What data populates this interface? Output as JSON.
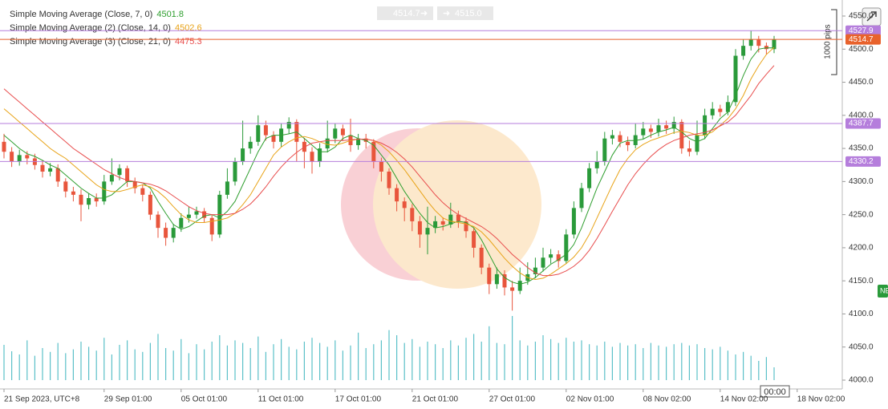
{
  "chart_data": {
    "type": "candlestick",
    "categories": [
      "21 Sep 2023, UTC+8",
      null,
      null,
      null,
      null,
      null,
      null,
      null,
      null,
      null,
      null,
      null,
      null,
      "29 Sep 01:00",
      null,
      null,
      null,
      null,
      null,
      null,
      null,
      null,
      null,
      "05 Oct 01:00",
      null,
      null,
      null,
      null,
      null,
      null,
      null,
      null,
      null,
      "11 Oct 01:00",
      null,
      null,
      null,
      null,
      null,
      null,
      null,
      null,
      null,
      "17 Oct 01:00",
      null,
      null,
      null,
      null,
      null,
      null,
      null,
      null,
      null,
      "21 Oct 01:00",
      null,
      null,
      null,
      null,
      null,
      null,
      null,
      null,
      null,
      "27 Oct 01:00",
      null,
      null,
      null,
      null,
      null,
      null,
      null,
      null,
      null,
      "02 Nov 01:00",
      null,
      null,
      null,
      null,
      null,
      null,
      null,
      null,
      null,
      "08 Nov 02:00",
      null,
      null,
      null,
      null,
      null,
      null,
      null,
      null,
      null,
      "14 Nov 02:00",
      null,
      null,
      null,
      null,
      null,
      null,
      null,
      null,
      null,
      "18 Nov 02:00"
    ],
    "open": [
      4360,
      4345,
      4330,
      4340,
      4335,
      4325,
      4315,
      4320,
      4300,
      4285,
      4280,
      4265,
      4275,
      4270,
      4300,
      4310,
      4320,
      4300,
      4290,
      4280,
      4250,
      4230,
      4215,
      4230,
      4245,
      4250,
      4255,
      4245,
      4220,
      4280,
      4300,
      4330,
      4350,
      4360,
      4385,
      4370,
      4360,
      4380,
      4390,
      4360,
      4345,
      4330,
      4350,
      4365,
      4380,
      4370,
      4355,
      4365,
      4360,
      4330,
      4315,
      4290,
      4270,
      4260,
      4240,
      4220,
      4230,
      4240,
      4235,
      4250,
      4240,
      4225,
      4200,
      4170,
      4145,
      4160,
      4140,
      4135,
      4150,
      4160,
      4170,
      4185,
      4190,
      4180,
      4220,
      4260,
      4290,
      4320,
      4330,
      4365,
      4370,
      4360,
      4355,
      4370,
      4380,
      4375,
      4385,
      4380,
      4390,
      4350,
      4345,
      4370,
      4400,
      4410,
      4405,
      4420,
      4490,
      4505,
      4515,
      4505,
      4500,
      null,
      null,
      null
    ],
    "high": [
      4372,
      4352,
      4348,
      4346,
      4342,
      4332,
      4328,
      4326,
      4305,
      4292,
      4288,
      4282,
      4282,
      4310,
      4335,
      4326,
      4324,
      4306,
      4296,
      4285,
      4255,
      4238,
      4236,
      4252,
      4262,
      4262,
      4260,
      4250,
      4286,
      4320,
      4336,
      4392,
      4368,
      4400,
      4392,
      4376,
      4388,
      4397,
      4394,
      4366,
      4352,
      4358,
      4392,
      4388,
      4386,
      4395,
      4372,
      4372,
      4364,
      4336,
      4320,
      4296,
      4276,
      4266,
      4248,
      4262,
      4248,
      4246,
      4268,
      4256,
      4246,
      4230,
      4205,
      4176,
      4170,
      4166,
      4150,
      4170,
      4178,
      4185,
      4200,
      4198,
      4196,
      4228,
      4270,
      4298,
      4328,
      4346,
      4375,
      4378,
      4376,
      4368,
      4388,
      4390,
      4386,
      4395,
      4392,
      4398,
      4394,
      4362,
      4392,
      4410,
      4420,
      4416,
      4430,
      4500,
      4515,
      4528,
      4520,
      4510,
      4520,
      null,
      null,
      null
    ],
    "low": [
      4335,
      4322,
      4324,
      4326,
      4318,
      4306,
      4308,
      4292,
      4276,
      4270,
      4240,
      4258,
      4262,
      4265,
      4295,
      4302,
      4292,
      4282,
      4270,
      4242,
      4215,
      4203,
      4208,
      4224,
      4238,
      4244,
      4238,
      4210,
      4215,
      4274,
      4294,
      4325,
      4342,
      4354,
      4362,
      4350,
      4352,
      4372,
      4330,
      4320,
      4312,
      4322,
      4344,
      4358,
      4362,
      4345,
      4348,
      4350,
      4320,
      4300,
      4280,
      4255,
      4240,
      4225,
      4200,
      4190,
      4222,
      4226,
      4230,
      4230,
      4215,
      4185,
      4160,
      4130,
      4138,
      4128,
      4105,
      4130,
      4144,
      4154,
      4164,
      4176,
      4170,
      4176,
      4214,
      4254,
      4284,
      4312,
      4324,
      4356,
      4352,
      4346,
      4350,
      4364,
      4366,
      4368,
      4372,
      4372,
      4342,
      4338,
      4340,
      4364,
      4394,
      4398,
      4400,
      4414,
      4484,
      4498,
      4495,
      4492,
      4494,
      null,
      null,
      null
    ],
    "close": [
      4345,
      4330,
      4340,
      4335,
      4325,
      4315,
      4320,
      4300,
      4285,
      4280,
      4265,
      4275,
      4270,
      4300,
      4310,
      4320,
      4300,
      4290,
      4280,
      4250,
      4230,
      4215,
      4230,
      4245,
      4250,
      4255,
      4245,
      4220,
      4280,
      4300,
      4330,
      4350,
      4360,
      4385,
      4370,
      4360,
      4380,
      4390,
      4360,
      4345,
      4330,
      4350,
      4365,
      4380,
      4370,
      4355,
      4365,
      4360,
      4330,
      4315,
      4290,
      4270,
      4260,
      4240,
      4220,
      4230,
      4240,
      4235,
      4250,
      4240,
      4225,
      4200,
      4170,
      4145,
      4160,
      4140,
      4135,
      4150,
      4160,
      4170,
      4185,
      4190,
      4180,
      4220,
      4260,
      4290,
      4320,
      4330,
      4365,
      4370,
      4360,
      4355,
      4370,
      4380,
      4375,
      4385,
      4380,
      4390,
      4350,
      4345,
      4370,
      4400,
      4410,
      4405,
      4420,
      4490,
      4505,
      4515,
      4505,
      4500,
      4514.7,
      null,
      null,
      null
    ],
    "up_color": "#2a9a3a",
    "down_color": "#e8553c",
    "volume": {
      "color": "#5bc0c8",
      "vlim": [
        0,
        100
      ],
      "values": [
        55,
        45,
        40,
        62,
        38,
        50,
        44,
        58,
        42,
        48,
        60,
        52,
        46,
        66,
        40,
        55,
        62,
        48,
        44,
        58,
        72,
        50,
        46,
        64,
        42,
        56,
        48,
        60,
        70,
        54,
        62,
        58,
        50,
        68,
        44,
        56,
        64,
        52,
        48,
        60,
        66,
        58,
        52,
        62,
        46,
        54,
        74,
        50,
        56,
        62,
        78,
        70,
        58,
        64,
        52,
        60,
        56,
        50,
        62,
        54,
        66,
        72,
        60,
        84,
        58,
        56,
        100,
        62,
        54,
        60,
        70,
        64,
        58,
        66,
        60,
        62,
        56,
        54,
        60,
        52,
        58,
        54,
        56,
        50,
        58,
        54,
        52,
        56,
        58,
        54,
        56,
        50,
        48,
        52,
        46,
        40,
        44,
        38,
        30,
        36,
        20,
        null,
        null,
        null
      ]
    },
    "series": [
      {
        "name": "Simple Moving Average (Close, 7, 0)",
        "color": "#2e9e2e",
        "values": [
          4370,
          4360,
          4350,
          4342,
          4338,
          4332,
          4325,
          4320,
          4310,
          4300,
          4290,
          4282,
          4275,
          4275,
          4280,
          4290,
          4300,
          4300,
          4298,
          4290,
          4270,
          4252,
          4235,
          4228,
          4232,
          4240,
          4248,
          4250,
          4245,
          4255,
          4270,
          4295,
          4320,
          4345,
          4365,
          4370,
          4370,
          4372,
          4375,
          4365,
          4355,
          4345,
          4345,
          4352,
          4365,
          4370,
          4365,
          4362,
          4355,
          4340,
          4325,
          4305,
          4285,
          4268,
          4252,
          4238,
          4230,
          4232,
          4236,
          4240,
          4238,
          4230,
          4212,
          4190,
          4168,
          4155,
          4148,
          4145,
          4148,
          4155,
          4165,
          4175,
          4182,
          4190,
          4205,
          4230,
          4260,
          4290,
          4315,
          4340,
          4358,
          4362,
          4362,
          4364,
          4370,
          4375,
          4378,
          4382,
          4375,
          4365,
          4360,
          4365,
          4380,
          4395,
          4405,
          4430,
          4460,
          4485,
          4500,
          4502,
          4501.8,
          null,
          null,
          null
        ]
      },
      {
        "name": "Simple Moving Average (2) (Close, 14, 0)",
        "color": "#e8a317",
        "values": [
          4410,
          4400,
          4390,
          4380,
          4370,
          4360,
          4350,
          4342,
          4335,
          4325,
          4315,
          4305,
          4295,
          4288,
          4285,
          4285,
          4288,
          4292,
          4295,
          4292,
          4285,
          4275,
          4262,
          4250,
          4242,
          4238,
          4238,
          4240,
          4242,
          4245,
          4252,
          4265,
          4280,
          4300,
          4320,
          4340,
          4352,
          4360,
          4366,
          4368,
          4365,
          4360,
          4356,
          4355,
          4358,
          4362,
          4364,
          4364,
          4362,
          4355,
          4345,
          4332,
          4318,
          4302,
          4286,
          4270,
          4256,
          4245,
          4240,
          4238,
          4236,
          4232,
          4224,
          4212,
          4198,
          4184,
          4172,
          4162,
          4155,
          4152,
          4154,
          4160,
          4168,
          4176,
          4186,
          4200,
          4220,
          4245,
          4270,
          4295,
          4318,
          4335,
          4348,
          4356,
          4362,
          4366,
          4370,
          4374,
          4376,
          4374,
          4370,
          4370,
          4375,
          4385,
          4395,
          4410,
          4430,
          4455,
          4475,
          4492,
          4502.6,
          null,
          null,
          null
        ]
      },
      {
        "name": "Simple Moving Average (3) (Close, 21, 0)",
        "color": "#e84c4c",
        "values": [
          4440,
          4430,
          4420,
          4410,
          4400,
          4390,
          4380,
          4370,
          4360,
          4350,
          4342,
          4334,
          4326,
          4318,
          4312,
          4306,
          4302,
          4300,
          4298,
          4296,
          4292,
          4286,
          4278,
          4270,
          4262,
          4256,
          4252,
          4250,
          4250,
          4250,
          4252,
          4258,
          4266,
          4278,
          4292,
          4308,
          4322,
          4334,
          4344,
          4352,
          4358,
          4360,
          4362,
          4362,
          4362,
          4363,
          4364,
          4364,
          4362,
          4358,
          4352,
          4344,
          4334,
          4322,
          4308,
          4294,
          4280,
          4268,
          4258,
          4250,
          4244,
          4238,
          4232,
          4224,
          4214,
          4202,
          4190,
          4180,
          4170,
          4162,
          4158,
          4158,
          4160,
          4165,
          4172,
          4182,
          4196,
          4214,
          4234,
          4255,
          4275,
          4295,
          4312,
          4326,
          4338,
          4348,
          4356,
          4362,
          4366,
          4370,
          4372,
          4374,
          4378,
          4384,
          4390,
          4400,
          4415,
          4430,
          4448,
          4462,
          4475.3,
          null,
          null,
          null
        ]
      }
    ],
    "ylim": [
      4000,
      4550
    ],
    "yticks": [
      {
        "value": 4000,
        "label": "4000.0"
      },
      {
        "value": 4050,
        "label": "4050.0"
      },
      {
        "value": 4100,
        "label": "4100.0"
      },
      {
        "value": 4150,
        "label": "4150.0"
      },
      {
        "value": 4200,
        "label": "4200.0"
      },
      {
        "value": 4250,
        "label": "4250.0"
      },
      {
        "value": 4300,
        "label": "4300.0"
      },
      {
        "value": 4350,
        "label": "4350.0"
      },
      {
        "value": 4400,
        "label": "4400.0"
      },
      {
        "value": 4450,
        "label": "4450.0"
      },
      {
        "value": 4500,
        "label": "4500.0"
      },
      {
        "value": 4550,
        "label": "4550.0"
      }
    ],
    "hlines": [
      {
        "value": 4527.9,
        "color": "#b57edc"
      },
      {
        "value": 4514.7,
        "color": "#e8622c"
      },
      {
        "value": 4387.7,
        "color": "#b57edc"
      },
      {
        "value": 4330.2,
        "color": "#b57edc"
      }
    ]
  },
  "toolbar": {
    "sell": "4514.7",
    "buy": "4515.0"
  },
  "pips_label": "1000 pips",
  "time_marker": "00:00",
  "badge": "NE"
}
